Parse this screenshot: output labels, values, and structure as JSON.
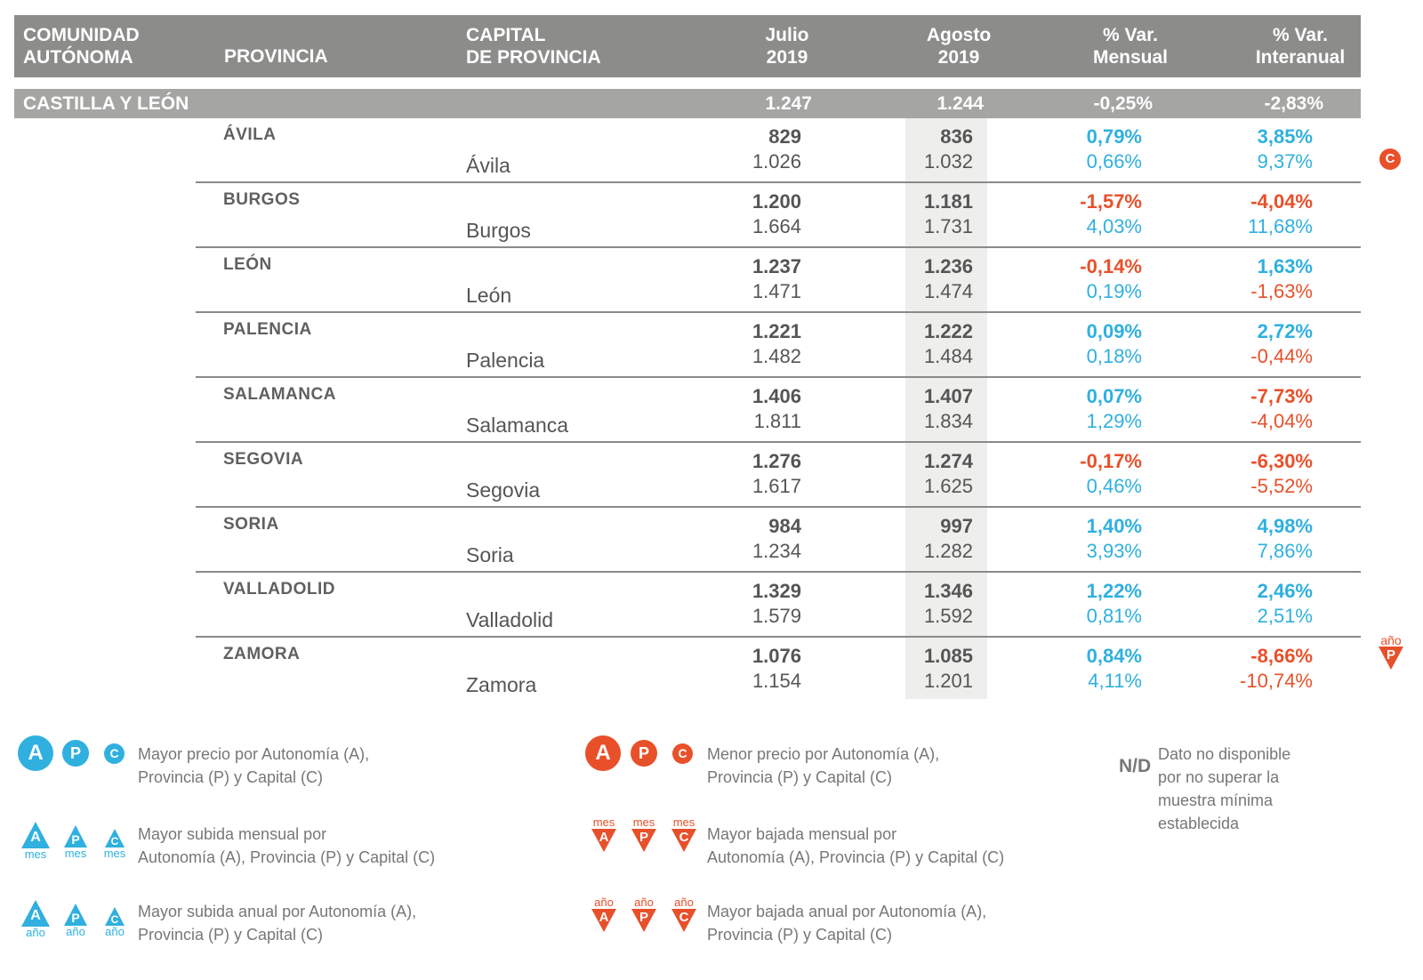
{
  "header": {
    "comunidad": "COMUNIDAD\nAUTÓNOMA",
    "provincia": "PROVINCIA",
    "capital": "CAPITAL\nDE PROVINCIA",
    "julio": "Julio\n2019",
    "agosto": "Agosto\n2019",
    "var_mensual": "% Var.\nMensual",
    "var_interanual": "% Var.\nInteranual"
  },
  "autonomia": {
    "name": "CASTILLA Y LEÓN",
    "julio": "1.247",
    "agosto": "1.244",
    "var_mensual": "-0,25%",
    "var_interanual": "-2,83%"
  },
  "rows": [
    {
      "provincia": "ÁVILA",
      "capital": "Ávila",
      "p_julio": "829",
      "p_agosto": "836",
      "p_mensual": "0,79%",
      "p_interanual": "3,85%",
      "c_julio": "1.026",
      "c_agosto": "1.032",
      "c_mensual": "0,66%",
      "c_interanual": "9,37%"
    },
    {
      "provincia": "BURGOS",
      "capital": "Burgos",
      "p_julio": "1.200",
      "p_agosto": "1.181",
      "p_mensual": "-1,57%",
      "p_interanual": "-4,04%",
      "c_julio": "1.664",
      "c_agosto": "1.731",
      "c_mensual": "4,03%",
      "c_interanual": "11,68%"
    },
    {
      "provincia": "LEÓN",
      "capital": "León",
      "p_julio": "1.237",
      "p_agosto": "1.236",
      "p_mensual": "-0,14%",
      "p_interanual": "1,63%",
      "c_julio": "1.471",
      "c_agosto": "1.474",
      "c_mensual": "0,19%",
      "c_interanual": "-1,63%"
    },
    {
      "provincia": "PALENCIA",
      "capital": "Palencia",
      "p_julio": "1.221",
      "p_agosto": "1.222",
      "p_mensual": "0,09%",
      "p_interanual": "2,72%",
      "c_julio": "1.482",
      "c_agosto": "1.484",
      "c_mensual": "0,18%",
      "c_interanual": "-0,44%"
    },
    {
      "provincia": "SALAMANCA",
      "capital": "Salamanca",
      "p_julio": "1.406",
      "p_agosto": "1.407",
      "p_mensual": "0,07%",
      "p_interanual": "-7,73%",
      "c_julio": "1.811",
      "c_agosto": "1.834",
      "c_mensual": "1,29%",
      "c_interanual": "-4,04%"
    },
    {
      "provincia": "SEGOVIA",
      "capital": "Segovia",
      "p_julio": "1.276",
      "p_agosto": "1.274",
      "p_mensual": "-0,17%",
      "p_interanual": "-6,30%",
      "c_julio": "1.617",
      "c_agosto": "1.625",
      "c_mensual": "0,46%",
      "c_interanual": "-5,52%"
    },
    {
      "provincia": "SORIA",
      "capital": "Soria",
      "p_julio": "984",
      "p_agosto": "997",
      "p_mensual": "1,40%",
      "p_interanual": "4,98%",
      "c_julio": "1.234",
      "c_agosto": "1.282",
      "c_mensual": "3,93%",
      "c_interanual": "7,86%"
    },
    {
      "provincia": "VALLADOLID",
      "capital": "Valladolid",
      "p_julio": "1.329",
      "p_agosto": "1.346",
      "p_mensual": "1,22%",
      "p_interanual": "2,46%",
      "c_julio": "1.579",
      "c_agosto": "1.592",
      "c_mensual": "0,81%",
      "c_interanual": "2,51%"
    },
    {
      "provincia": "ZAMORA",
      "capital": "Zamora",
      "p_julio": "1.076",
      "p_agosto": "1.085",
      "p_mensual": "0,84%",
      "p_interanual": "-8,66%",
      "c_julio": "1.154",
      "c_agosto": "1.201",
      "c_mensual": "4,11%",
      "c_interanual": "-10,74%"
    }
  ],
  "markers": {
    "avila_capital": "C",
    "zamora_ano_word": "año",
    "zamora_ano_letter": "P"
  },
  "legend": {
    "letters": {
      "a": "A",
      "p": "P",
      "c": "C"
    },
    "mes": "mes",
    "ano": "año",
    "mayor_precio": "Mayor precio por Autonomía (A),\nProvincia (P) y Capital (C)",
    "menor_precio": "Menor precio por Autonomía (A),\nProvincia (P) y Capital (C)",
    "mayor_subida_mensual": "Mayor subida mensual por\nAutonomía (A), Provincia (P) y Capital (C)",
    "mayor_bajada_mensual": "Mayor bajada mensual por\nAutonomía (A), Provincia (P) y Capital (C)",
    "mayor_subida_anual": "Mayor subida anual por Autonomía (A),\nProvincia (P) y Capital (C)",
    "mayor_bajada_anual": "Mayor bajada anual por Autonomía (A),\nProvincia (P) y Capital (C)",
    "nd_label": "N/D",
    "nd_text": "Dato no disponible\npor no superar la\nmuestra mínima\nestablecida"
  },
  "colors": {
    "header": "#8c8c8a",
    "autonomia_bar": "#a5a5a3",
    "positive": "#2fb0df",
    "negative": "#e8502a"
  }
}
